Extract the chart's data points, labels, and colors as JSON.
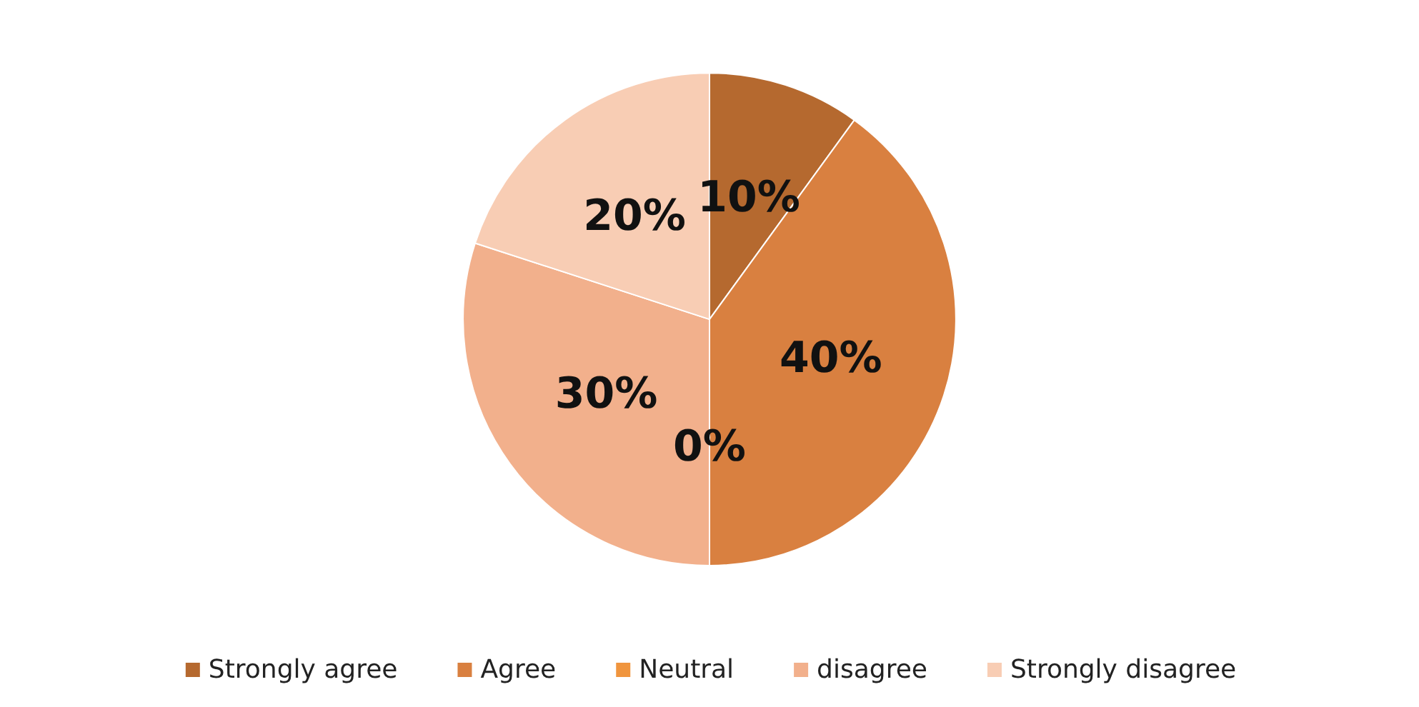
{
  "chart_data": {
    "type": "pie",
    "categories": [
      "Strongly agree",
      "Agree",
      "Neutral",
      "disagree",
      "Strongly disagree"
    ],
    "values": [
      10,
      40,
      0,
      30,
      20
    ],
    "colors": [
      "#b5692f",
      "#d98040",
      "#f0953e",
      "#f2b08c",
      "#f8cdb4"
    ],
    "value_labels": [
      "10%",
      "40%",
      "0%",
      "30%",
      "20%"
    ],
    "legend": "bottom"
  }
}
